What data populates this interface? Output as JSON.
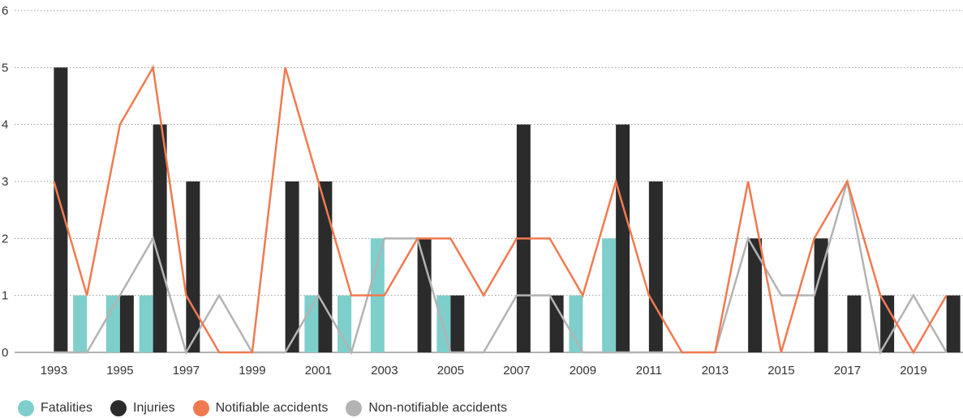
{
  "chart_data": {
    "type": "bar",
    "categories": [
      "1993",
      "1994",
      "1995",
      "1996",
      "1997",
      "1998",
      "1999",
      "2000",
      "2001",
      "2002",
      "2003",
      "2004",
      "2005",
      "2006",
      "2007",
      "2008",
      "2009",
      "2010",
      "2011",
      "2012",
      "2013",
      "2014",
      "2015",
      "2016",
      "2017",
      "2018",
      "2019",
      "2020"
    ],
    "x_tick_labels": [
      "1993",
      "1995",
      "1997",
      "1999",
      "2001",
      "2003",
      "2005",
      "2007",
      "2009",
      "2011",
      "2013",
      "2015",
      "2017",
      "2019"
    ],
    "y_tick_labels": [
      "0",
      "1",
      "2",
      "3",
      "4",
      "5",
      "6"
    ],
    "ylim": [
      0,
      6
    ],
    "grid": "horizontal dotted",
    "legend_position": "bottom-left",
    "series": [
      {
        "name": "Fatalities",
        "kind": "bar",
        "color": "#7ecfcb",
        "values": [
          0,
          1,
          1,
          1,
          0,
          0,
          0,
          0,
          1,
          1,
          2,
          0,
          1,
          0,
          0,
          0,
          1,
          2,
          0,
          0,
          0,
          0,
          0,
          0,
          0,
          0,
          0,
          0
        ]
      },
      {
        "name": "Injuries",
        "kind": "bar",
        "color": "#2b2b2b",
        "values": [
          5,
          0,
          1,
          4,
          3,
          0,
          0,
          3,
          3,
          0,
          0,
          2,
          1,
          0,
          4,
          1,
          0,
          4,
          3,
          0,
          0,
          2,
          0,
          2,
          1,
          1,
          0,
          1
        ]
      },
      {
        "name": "Notifiable accidents",
        "kind": "line",
        "color": "#f07a50",
        "values": [
          3,
          1,
          4,
          5,
          1,
          0,
          0,
          5,
          3,
          1,
          1,
          2,
          2,
          1,
          2,
          2,
          1,
          3,
          1,
          0,
          0,
          3,
          0,
          2,
          3,
          1,
          0,
          1
        ]
      },
      {
        "name": "Non-notifiable accidents",
        "kind": "line",
        "color": "#b3b3b3",
        "values": [
          0,
          0,
          1,
          2,
          0,
          1,
          0,
          0,
          1,
          0,
          2,
          2,
          0,
          0,
          1,
          1,
          0,
          0,
          0,
          0,
          0,
          2,
          1,
          1,
          3,
          0,
          1,
          0
        ]
      }
    ]
  }
}
